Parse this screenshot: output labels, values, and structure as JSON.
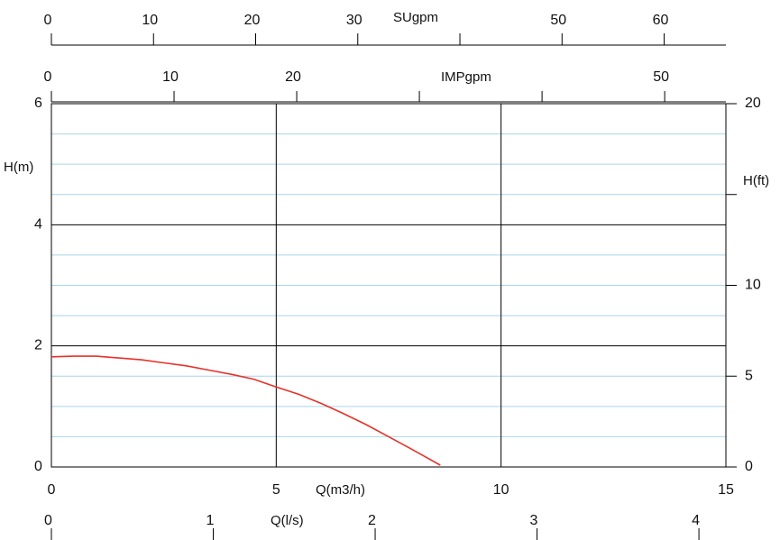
{
  "chart_data": {
    "type": "line",
    "title": "",
    "xlabel": "Q(m3/h)",
    "ylabel": "H(m)",
    "y2label": "H(ft)",
    "xlim": [
      0,
      15
    ],
    "ylim": [
      0,
      6
    ],
    "y2lim": [
      0,
      20
    ],
    "grid": true,
    "top_axis_1": {
      "label": "SUgpm",
      "ticks": [
        0,
        10,
        20,
        30,
        50,
        60
      ]
    },
    "top_axis_2": {
      "label": "IMPgpm",
      "ticks": [
        0,
        10,
        20,
        50
      ]
    },
    "bottom_axis_1": {
      "label": "Q(m3/h)",
      "ticks": [
        0,
        5,
        10,
        15
      ]
    },
    "bottom_axis_2": {
      "label": "Q(l/s)",
      "ticks": [
        0,
        1,
        2,
        3,
        4
      ]
    },
    "y_ticks": [
      0,
      2,
      4,
      6
    ],
    "y2_ticks": [
      0,
      5,
      10,
      20
    ],
    "line_color": "#e8302a",
    "series": [
      {
        "x": [
          0,
          0.5,
          1.0,
          1.5,
          2.0,
          2.5,
          3.0,
          3.5,
          4.0,
          4.5,
          5.0,
          5.5,
          6.0,
          6.5,
          7.0,
          7.5,
          8.0,
          8.65
        ],
        "y": [
          1.82,
          1.83,
          1.83,
          1.8,
          1.77,
          1.72,
          1.67,
          1.6,
          1.53,
          1.45,
          1.32,
          1.2,
          1.05,
          0.88,
          0.7,
          0.5,
          0.3,
          0.03
        ]
      }
    ]
  }
}
